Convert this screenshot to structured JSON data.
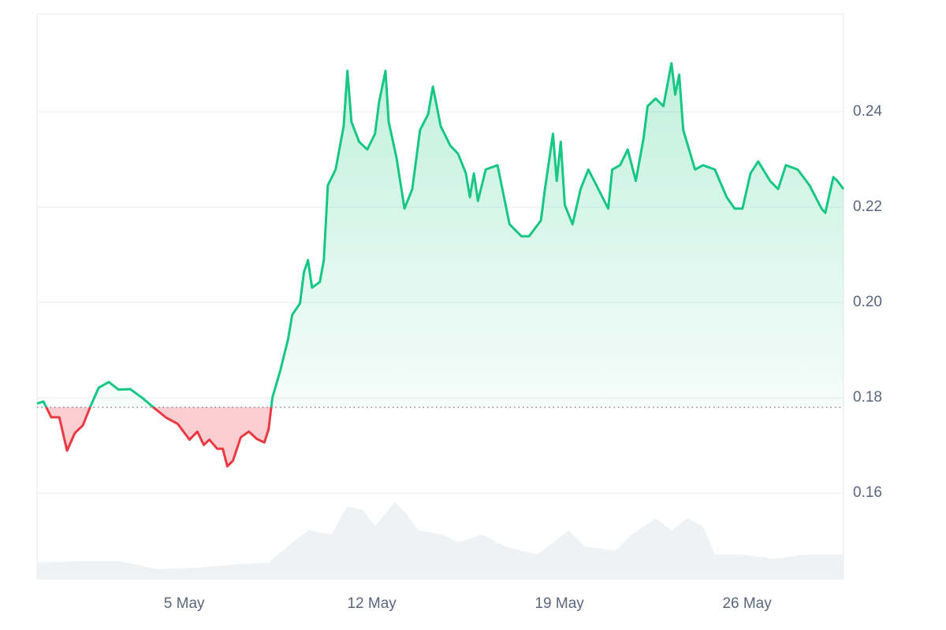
{
  "chart_data": {
    "type": "line",
    "up_color": "#16c784",
    "down_color": "#ea3943",
    "baseline": 0.178,
    "grid": true,
    "xlim": [
      -0.49,
      29.6
    ],
    "ylim": [
      0.142,
      0.2605
    ],
    "xticks": [
      {
        "value": 5,
        "label": "5 May"
      },
      {
        "value": 12,
        "label": "12 May"
      },
      {
        "value": 19,
        "label": "19 May"
      },
      {
        "value": 26,
        "label": "26 May"
      }
    ],
    "yticks": [
      0.16,
      0.18,
      {
        "value": 0.2,
        "label": "0.20"
      },
      0.22,
      0.24
    ],
    "x": [
      -0.49,
      -0.25,
      0.04,
      0.34,
      0.63,
      0.92,
      1.22,
      1.51,
      1.81,
      2.19,
      2.55,
      2.99,
      3.43,
      3.87,
      4.31,
      4.76,
      5.2,
      5.49,
      5.73,
      5.94,
      6.23,
      6.44,
      6.61,
      6.82,
      7.11,
      7.41,
      7.7,
      7.99,
      8.15,
      8.29,
      8.59,
      8.88,
      9.03,
      9.32,
      9.47,
      9.62,
      9.77,
      10.06,
      10.21,
      10.36,
      10.65,
      10.95,
      11.09,
      11.24,
      11.53,
      11.83,
      12.12,
      12.27,
      12.51,
      12.63,
      12.92,
      13.22,
      13.51,
      13.8,
      14.1,
      14.28,
      14.57,
      14.93,
      15.22,
      15.51,
      15.66,
      15.81,
      15.96,
      16.25,
      16.69,
      17.14,
      17.58,
      17.87,
      18.31,
      18.46,
      18.76,
      18.9,
      19.05,
      19.2,
      19.49,
      19.79,
      20.08,
      20.38,
      20.82,
      20.97,
      21.26,
      21.55,
      21.85,
      22.14,
      22.29,
      22.59,
      22.88,
      23.18,
      23.32,
      23.47,
      23.62,
      24.06,
      24.36,
      24.8,
      25.24,
      25.54,
      25.83,
      26.13,
      26.42,
      26.86,
      27.16,
      27.45,
      27.89,
      28.33,
      28.78,
      28.92,
      29.22,
      29.37,
      29.6
    ],
    "values": [
      0.1788,
      0.1792,
      0.1759,
      0.1759,
      0.1689,
      0.1726,
      0.1742,
      0.1783,
      0.1821,
      0.1833,
      0.1817,
      0.1818,
      0.18,
      0.1779,
      0.1759,
      0.1745,
      0.1712,
      0.1729,
      0.1701,
      0.1712,
      0.1693,
      0.1693,
      0.1656,
      0.1668,
      0.1717,
      0.1729,
      0.1714,
      0.1706,
      0.1734,
      0.18,
      0.1858,
      0.1924,
      0.1974,
      0.1998,
      0.2064,
      0.2089,
      0.2031,
      0.2043,
      0.2089,
      0.2246,
      0.2279,
      0.237,
      0.2486,
      0.2379,
      0.2337,
      0.2321,
      0.2354,
      0.242,
      0.2486,
      0.2379,
      0.2304,
      0.2197,
      0.2238,
      0.2362,
      0.2395,
      0.2453,
      0.237,
      0.2329,
      0.2312,
      0.2271,
      0.2221,
      0.2271,
      0.2213,
      0.2279,
      0.2288,
      0.2164,
      0.2139,
      0.2139,
      0.2172,
      0.2238,
      0.2354,
      0.2255,
      0.2337,
      0.2205,
      0.2164,
      0.2238,
      0.2279,
      0.2246,
      0.2197,
      0.2279,
      0.2288,
      0.2321,
      0.2255,
      0.2345,
      0.2412,
      0.2428,
      0.2412,
      0.2502,
      0.2436,
      0.2478,
      0.2362,
      0.2279,
      0.2288,
      0.2279,
      0.2221,
      0.2197,
      0.2197,
      0.2271,
      0.2296,
      0.2255,
      0.2238,
      0.2288,
      0.2279,
      0.2246,
      0.2197,
      0.2188,
      0.2263,
      0.2255,
      0.2238
    ],
    "y2lim": [
      0,
      700
    ],
    "volume": {
      "color": "#eff2f5",
      "x": [
        -0.49,
        1.07,
        2.55,
        4.02,
        5.49,
        6.97,
        8.15,
        9.03,
        9.62,
        10.5,
        11.09,
        11.68,
        12.12,
        12.86,
        13.3,
        13.75,
        14.63,
        15.22,
        16.1,
        16.99,
        18.17,
        18.76,
        19.35,
        19.93,
        21.11,
        21.7,
        22.59,
        23.18,
        23.77,
        24.36,
        24.8,
        25.83,
        27.01,
        28.19,
        29.6
      ],
      "values": [
        20,
        22,
        22,
        12,
        14,
        18,
        20,
        45,
        60,
        55,
        90,
        85,
        65,
        95,
        80,
        60,
        55,
        45,
        55,
        40,
        30,
        45,
        60,
        40,
        35,
        55,
        75,
        60,
        75,
        65,
        30,
        30,
        25,
        30,
        30
      ]
    }
  }
}
